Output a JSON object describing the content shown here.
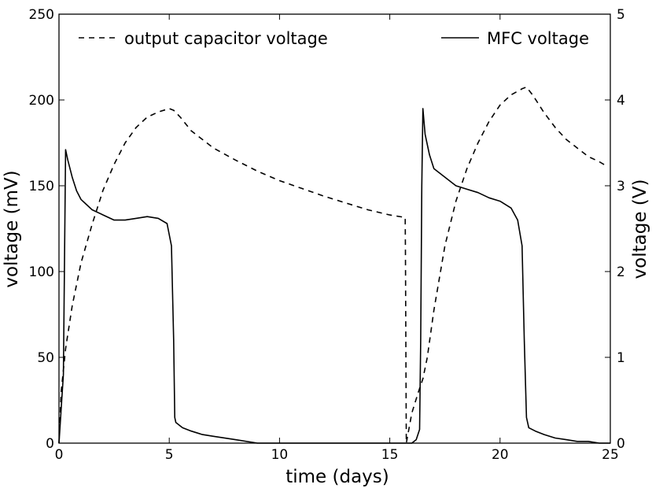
{
  "chart_data": {
    "type": "line",
    "title": "",
    "xlabel": "time (days)",
    "ylabel": "voltage (mV)",
    "ylabel_right": "voltage (V)",
    "xlim": [
      0,
      25
    ],
    "ylim": [
      0,
      250
    ],
    "ylim_right": [
      0,
      5
    ],
    "x_ticks": [
      0,
      5,
      10,
      15,
      20,
      25
    ],
    "y_ticks": [
      0,
      50,
      100,
      150,
      200,
      250
    ],
    "y_ticks_right": [
      0,
      1,
      2,
      3,
      4,
      5
    ],
    "grid": false,
    "legend_position": "top",
    "series": [
      {
        "name": "output capacitor voltage",
        "axis": "right",
        "style": "dashed",
        "color": "#000000",
        "x": [
          0,
          0.1,
          0.3,
          0.6,
          1.0,
          1.5,
          2.0,
          2.5,
          3.0,
          3.5,
          4.0,
          4.5,
          5.0,
          5.2,
          5.5,
          6.0,
          7.0,
          8.0,
          9.0,
          10.0,
          11.0,
          12.0,
          13.0,
          14.0,
          15.0,
          15.7,
          15.71,
          15.75,
          16.0,
          16.3,
          16.5,
          16.7,
          17.0,
          17.5,
          18.0,
          18.5,
          19.0,
          19.5,
          20.0,
          20.5,
          21.0,
          21.2,
          21.5,
          22.0,
          22.5,
          23.0,
          23.5,
          24.0,
          24.5,
          24.9
        ],
        "values": [
          0.0,
          0.6,
          1.1,
          1.6,
          2.1,
          2.55,
          2.95,
          3.25,
          3.5,
          3.68,
          3.8,
          3.86,
          3.9,
          3.88,
          3.8,
          3.64,
          3.44,
          3.3,
          3.17,
          3.06,
          2.97,
          2.88,
          2.8,
          2.72,
          2.66,
          2.63,
          2.25,
          0.0,
          0.35,
          0.6,
          0.75,
          1.0,
          1.55,
          2.3,
          2.82,
          3.2,
          3.5,
          3.75,
          3.94,
          4.06,
          4.13,
          4.15,
          4.05,
          3.85,
          3.68,
          3.54,
          3.44,
          3.34,
          3.28,
          3.22
        ]
      },
      {
        "name": "MFC voltage",
        "axis": "left",
        "style": "solid",
        "color": "#000000",
        "x": [
          0,
          0.2,
          0.3,
          0.4,
          0.6,
          0.8,
          1.0,
          1.5,
          2.0,
          2.5,
          3.0,
          3.5,
          4.0,
          4.5,
          4.9,
          5.1,
          5.2,
          5.25,
          5.3,
          5.6,
          6.0,
          6.5,
          7.0,
          8.0,
          9.0,
          10.0,
          12.0,
          14.0,
          15.5,
          15.8,
          16.0,
          16.2,
          16.35,
          16.4,
          16.45,
          16.5,
          16.6,
          16.8,
          17.0,
          17.5,
          18.0,
          18.5,
          19.0,
          19.5,
          20.0,
          20.5,
          20.8,
          21.0,
          21.1,
          21.2,
          21.3,
          21.6,
          22.0,
          22.5,
          23.0,
          23.5,
          24.0,
          24.5,
          25.0
        ],
        "values": [
          0,
          40,
          171,
          165,
          155,
          147,
          142,
          136,
          133,
          130,
          130,
          131,
          132,
          131,
          128,
          115,
          60,
          15,
          12,
          9,
          7,
          5,
          4,
          2,
          0,
          0,
          0,
          0,
          0,
          0,
          0,
          2,
          8,
          60,
          150,
          195,
          180,
          168,
          160,
          155,
          150,
          148,
          146,
          143,
          141,
          137,
          130,
          115,
          60,
          15,
          9,
          7,
          5,
          3,
          2,
          1,
          1,
          0,
          0
        ]
      }
    ]
  }
}
